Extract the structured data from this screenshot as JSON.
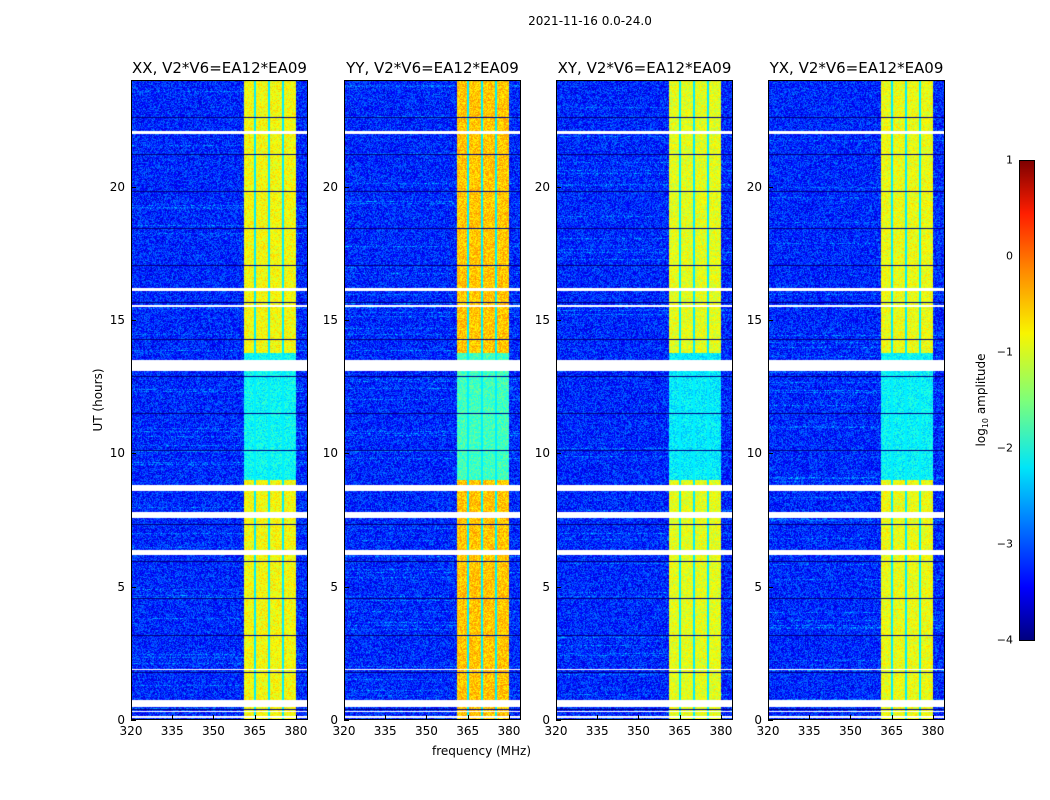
{
  "chart_data": {
    "type": "heatmap",
    "title": "2021-11-16 0.0-24.0",
    "xlabel": "frequency (MHz)",
    "ylabel": "UT (hours)",
    "xlim": [
      320,
      384.4
    ],
    "ylim": [
      0,
      24
    ],
    "xticks": [
      "320",
      "335",
      "350",
      "365",
      "380"
    ],
    "xtick_values": [
      320,
      335,
      350,
      365,
      380
    ],
    "yticks": [
      "0",
      "5",
      "10",
      "15",
      "20"
    ],
    "ytick_values": [
      0,
      5,
      10,
      15,
      20
    ],
    "panels": [
      {
        "title": "XX, V2*V6=EA12*EA09",
        "band_level": -0.9
      },
      {
        "title": "YY, V2*V6=EA12*EA09",
        "band_level": -0.6
      },
      {
        "title": "XY, V2*V6=EA12*EA09",
        "band_level": -1.0
      },
      {
        "title": "YX, V2*V6=EA12*EA09",
        "band_level": -0.95
      }
    ],
    "rfi_band_mhz": [
      361,
      380
    ],
    "background_level": -3.2,
    "flagged_hours": [
      [
        0.1,
        0.15
      ],
      [
        0.3,
        0.35
      ],
      [
        0.5,
        0.75
      ],
      [
        1.9,
        1.95
      ],
      [
        6.2,
        6.4
      ],
      [
        7.6,
        7.8
      ],
      [
        8.6,
        8.85
      ],
      [
        13.1,
        13.5
      ],
      [
        15.5,
        15.6
      ],
      [
        16.1,
        16.2
      ],
      [
        22.0,
        22.1
      ]
    ],
    "colorbar": {
      "label": "log10 amplitude",
      "label_main": "log",
      "label_sub": "10",
      "label_rest": " amplitude",
      "range": [
        -4,
        1
      ],
      "ticks": [
        "1",
        "0",
        "−1",
        "−2",
        "−3",
        "−4"
      ],
      "tick_values": [
        1,
        0,
        -1,
        -2,
        -3,
        -4
      ],
      "colormap": "jet"
    }
  }
}
